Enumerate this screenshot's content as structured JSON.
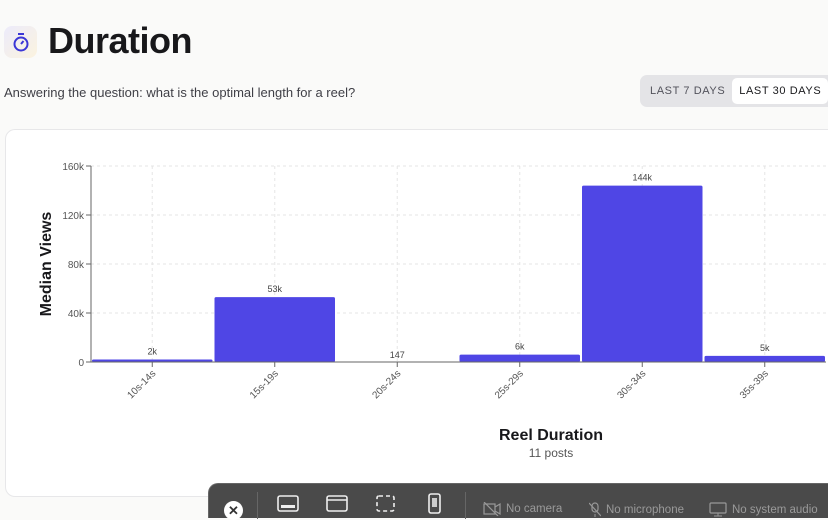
{
  "header": {
    "title": "Duration",
    "subtitle": "Answering the question: what is the optimal length for a reel?",
    "icon": "stopwatch-icon",
    "icon_color": "#3b36d6"
  },
  "tabs": [
    {
      "label": "LAST 7 DAYS",
      "active": false
    },
    {
      "label": "LAST 30 DAYS",
      "active": true
    }
  ],
  "chart_data": {
    "type": "bar",
    "categories": [
      "10s-14s",
      "15s-19s",
      "20s-24s",
      "25s-29s",
      "30s-34s",
      "35s-39s"
    ],
    "values": [
      2000,
      53000,
      147,
      6000,
      144000,
      5000
    ],
    "data_labels": [
      "2k",
      "53k",
      "147",
      "6k",
      "144k",
      "5k"
    ],
    "ylabel": "Median Views",
    "xlabel": "Reel Duration",
    "caption": "11 posts",
    "yticks": [
      "0",
      "40k",
      "80k",
      "120k",
      "160k"
    ],
    "ylim": [
      0,
      160000
    ],
    "grid": true,
    "bar_color": "#4f46e5"
  },
  "toolbar": {
    "camera": "No camera",
    "microphone": "No microphone",
    "audio": "No system audio"
  }
}
